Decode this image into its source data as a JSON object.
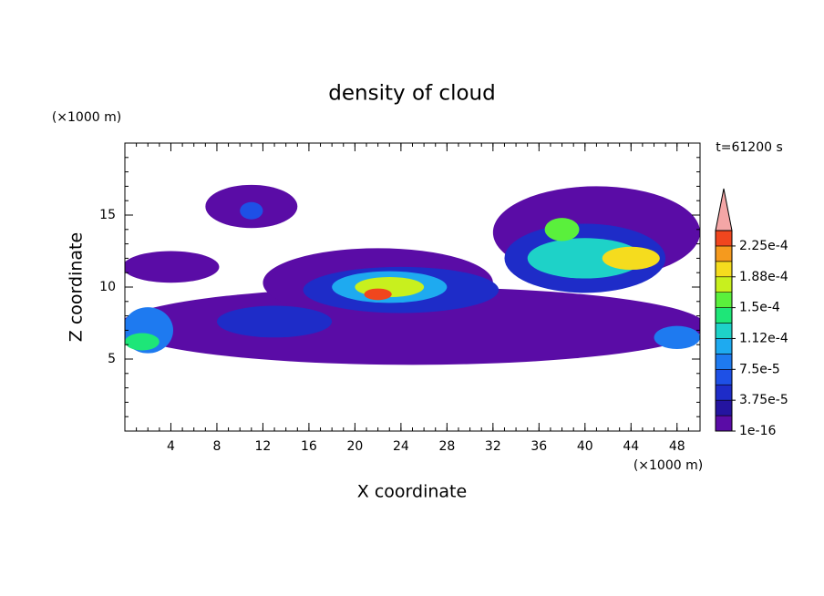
{
  "chart_data": {
    "type": "contour",
    "title": "density of cloud",
    "x_label": "X coordinate",
    "y_label": "Z coordinate",
    "x_unit": "(×1000 m)",
    "y_unit": "(×1000 m)",
    "time_label": "t=61200 s",
    "xlim": [
      0,
      50
    ],
    "ylim": [
      0,
      20
    ],
    "xticks": [
      4,
      8,
      12,
      16,
      20,
      24,
      28,
      32,
      36,
      40,
      44,
      48
    ],
    "yticks": [
      5,
      10,
      15
    ],
    "regions": [
      {
        "x": 25,
        "z": 7.3,
        "rx": 25.5,
        "rz": 2.7,
        "v": 5e-06
      },
      {
        "x": 41,
        "z": 13.8,
        "rx": 9,
        "rz": 3.2,
        "v": 5e-06
      },
      {
        "x": 11,
        "z": 15.6,
        "rx": 4,
        "rz": 1.5,
        "v": 5e-06
      },
      {
        "x": 4,
        "z": 11.4,
        "rx": 4.2,
        "rz": 1.1,
        "v": 5e-06
      },
      {
        "x": 22,
        "z": 10.3,
        "rx": 10,
        "rz": 2.4,
        "v": 5e-06
      },
      {
        "x": 24,
        "z": 9.8,
        "rx": 8.5,
        "rz": 1.6,
        "v": 4e-05
      },
      {
        "x": 13,
        "z": 7.6,
        "rx": 5,
        "rz": 1.1,
        "v": 4e-05
      },
      {
        "x": 23,
        "z": 10,
        "rx": 5,
        "rz": 1.1,
        "v": 0.00011
      },
      {
        "x": 23,
        "z": 10,
        "rx": 3,
        "rz": 0.7,
        "v": 0.00017
      },
      {
        "x": 22,
        "z": 9.5,
        "rx": 1.2,
        "rz": 0.4,
        "v": 0.00023
      },
      {
        "x": 40,
        "z": 12,
        "rx": 7,
        "rz": 2.4,
        "v": 5e-05
      },
      {
        "x": 40,
        "z": 12,
        "rx": 5,
        "rz": 1.4,
        "v": 0.00012
      },
      {
        "x": 44,
        "z": 12,
        "rx": 2.5,
        "rz": 0.8,
        "v": 0.00019
      },
      {
        "x": 38,
        "z": 14,
        "rx": 1.5,
        "rz": 0.8,
        "v": 0.00016
      },
      {
        "x": 2,
        "z": 7,
        "rx": 2.2,
        "rz": 1.6,
        "v": 9e-05
      },
      {
        "x": 1.5,
        "z": 6.2,
        "rx": 1.5,
        "rz": 0.6,
        "v": 0.00015
      },
      {
        "x": 48,
        "z": 6.5,
        "rx": 2,
        "rz": 0.8,
        "v": 9e-05
      },
      {
        "x": 11,
        "z": 15.3,
        "rx": 1,
        "rz": 0.6,
        "v": 6e-05
      }
    ],
    "colorbar": {
      "lim": [
        1e-16,
        0.00024375
      ],
      "ticks": [
        {
          "value": 1e-16,
          "label": "1e-16"
        },
        {
          "value": 3.75e-05,
          "label": "3.75e-5"
        },
        {
          "value": 7.5e-05,
          "label": "7.5e-5"
        },
        {
          "value": 0.0001125,
          "label": "1.12e-4"
        },
        {
          "value": 0.00015,
          "label": "1.5e-4"
        },
        {
          "value": 0.0001875,
          "label": "1.88e-4"
        },
        {
          "value": 0.000225,
          "label": "2.25e-4"
        }
      ],
      "colors": [
        "#5a0ca6",
        "#2414a0",
        "#1e2cc8",
        "#1e50e6",
        "#1e7af0",
        "#1eaaf0",
        "#1ed2c8",
        "#1ee678",
        "#5af03c",
        "#c8f01e",
        "#f5dc1e",
        "#f59a1e",
        "#f0461e"
      ],
      "extend_color": "#f4a6a6"
    }
  }
}
